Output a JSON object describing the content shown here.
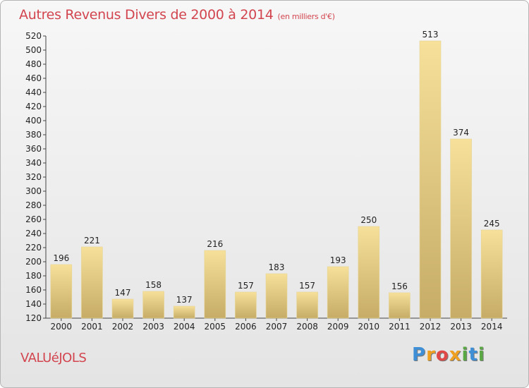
{
  "header": {
    "title": "Autres Revenus Divers de 2000 à 2014",
    "unit": "(en milliers d'€)"
  },
  "footer": {
    "place": "VALUéJOLS",
    "brand": [
      "P",
      "r",
      "o",
      "x",
      "i",
      "t",
      "i"
    ]
  },
  "colors": {
    "title": "#d2454f",
    "bar_light": "#f6e09a",
    "bar_dark": "#c6ac66",
    "brand": [
      "#3f8fd6",
      "#f0a020",
      "#e04848",
      "#f0a020",
      "#5aa844",
      "#3f8fd6",
      "#5aa844"
    ]
  },
  "chart_data": {
    "type": "bar",
    "title": "Autres Revenus Divers de 2000 à 2014",
    "subtitle": "(en milliers d'€)",
    "xlabel": "",
    "ylabel": "",
    "categories": [
      "2000",
      "2001",
      "2002",
      "2003",
      "2004",
      "2005",
      "2006",
      "2007",
      "2008",
      "2009",
      "2010",
      "2011",
      "2012",
      "2013",
      "2014"
    ],
    "values": [
      196,
      221,
      147,
      158,
      137,
      216,
      157,
      183,
      157,
      193,
      250,
      156,
      513,
      374,
      245
    ],
    "ylim": [
      120,
      520
    ],
    "ytick_step": 20,
    "grid": false,
    "legend": "none",
    "data_labels": true
  }
}
